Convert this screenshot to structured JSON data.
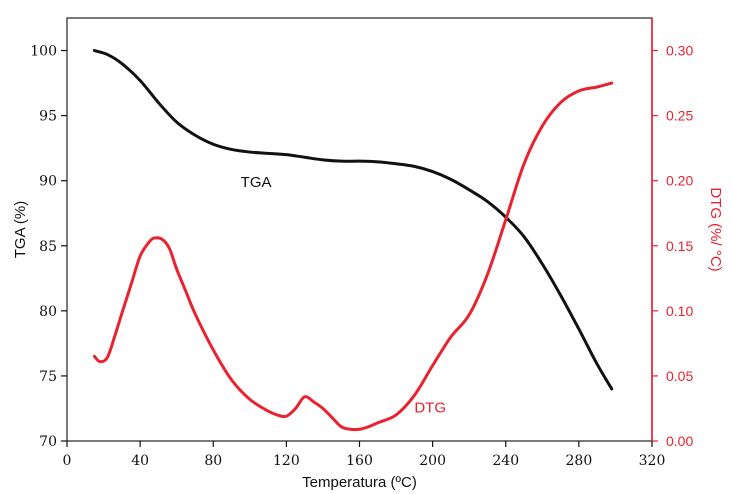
{
  "colors": {
    "tga": "#111111",
    "dtg": "#e8232f",
    "axis_left": "#111111",
    "axis_right": "#e8232f"
  },
  "chart_data": {
    "type": "line",
    "grid": false,
    "x_axis": {
      "label": "Temperatura (ºC)",
      "range": [
        0,
        320
      ],
      "ticks": [
        0,
        40,
        80,
        120,
        160,
        200,
        240,
        280,
        320
      ]
    },
    "y_axis_left": {
      "label": "TGA (%)",
      "range": [
        70,
        102.5
      ],
      "ticks": [
        70,
        75,
        80,
        85,
        90,
        95,
        100
      ]
    },
    "y_axis_right": {
      "label": "DTG (%/ °C)",
      "range": [
        0,
        0.325
      ],
      "ticks": [
        "0.00",
        "0.05",
        "0.10",
        "0.15",
        "0.20",
        "0.25",
        "0.30"
      ]
    },
    "series": [
      {
        "name": "TGA",
        "axis": "left",
        "points": [
          [
            15,
            100.0
          ],
          [
            22,
            99.7
          ],
          [
            30,
            99.0
          ],
          [
            40,
            97.7
          ],
          [
            50,
            96.0
          ],
          [
            60,
            94.5
          ],
          [
            70,
            93.5
          ],
          [
            80,
            92.8
          ],
          [
            90,
            92.4
          ],
          [
            100,
            92.2
          ],
          [
            110,
            92.1
          ],
          [
            120,
            92.0
          ],
          [
            130,
            91.8
          ],
          [
            140,
            91.6
          ],
          [
            150,
            91.5
          ],
          [
            160,
            91.5
          ],
          [
            170,
            91.45
          ],
          [
            180,
            91.3
          ],
          [
            190,
            91.1
          ],
          [
            200,
            90.7
          ],
          [
            210,
            90.1
          ],
          [
            220,
            89.3
          ],
          [
            230,
            88.4
          ],
          [
            240,
            87.2
          ],
          [
            250,
            85.7
          ],
          [
            260,
            83.6
          ],
          [
            270,
            81.2
          ],
          [
            280,
            78.6
          ],
          [
            290,
            75.9
          ],
          [
            298,
            74.0
          ]
        ]
      },
      {
        "name": "DTG",
        "axis": "right",
        "points": [
          [
            15,
            0.065
          ],
          [
            18,
            0.061
          ],
          [
            22,
            0.064
          ],
          [
            26,
            0.08
          ],
          [
            30,
            0.098
          ],
          [
            35,
            0.12
          ],
          [
            40,
            0.142
          ],
          [
            45,
            0.153
          ],
          [
            48,
            0.156
          ],
          [
            52,
            0.155
          ],
          [
            56,
            0.148
          ],
          [
            60,
            0.132
          ],
          [
            65,
            0.115
          ],
          [
            70,
            0.098
          ],
          [
            80,
            0.07
          ],
          [
            90,
            0.047
          ],
          [
            100,
            0.032
          ],
          [
            110,
            0.023
          ],
          [
            115,
            0.02
          ],
          [
            120,
            0.019
          ],
          [
            125,
            0.025
          ],
          [
            130,
            0.034
          ],
          [
            135,
            0.03
          ],
          [
            140,
            0.025
          ],
          [
            145,
            0.018
          ],
          [
            150,
            0.011
          ],
          [
            155,
            0.009
          ],
          [
            160,
            0.009
          ],
          [
            165,
            0.011
          ],
          [
            170,
            0.014
          ],
          [
            180,
            0.02
          ],
          [
            190,
            0.035
          ],
          [
            200,
            0.058
          ],
          [
            210,
            0.08
          ],
          [
            220,
            0.097
          ],
          [
            230,
            0.128
          ],
          [
            240,
            0.17
          ],
          [
            250,
            0.213
          ],
          [
            260,
            0.242
          ],
          [
            270,
            0.26
          ],
          [
            280,
            0.269
          ],
          [
            290,
            0.272
          ],
          [
            298,
            0.275
          ]
        ]
      }
    ],
    "annotations": [
      {
        "text": "TGA",
        "x": 95,
        "y_left": 89.5
      },
      {
        "text": "DTG",
        "x": 190,
        "y_right": 0.022
      }
    ]
  }
}
